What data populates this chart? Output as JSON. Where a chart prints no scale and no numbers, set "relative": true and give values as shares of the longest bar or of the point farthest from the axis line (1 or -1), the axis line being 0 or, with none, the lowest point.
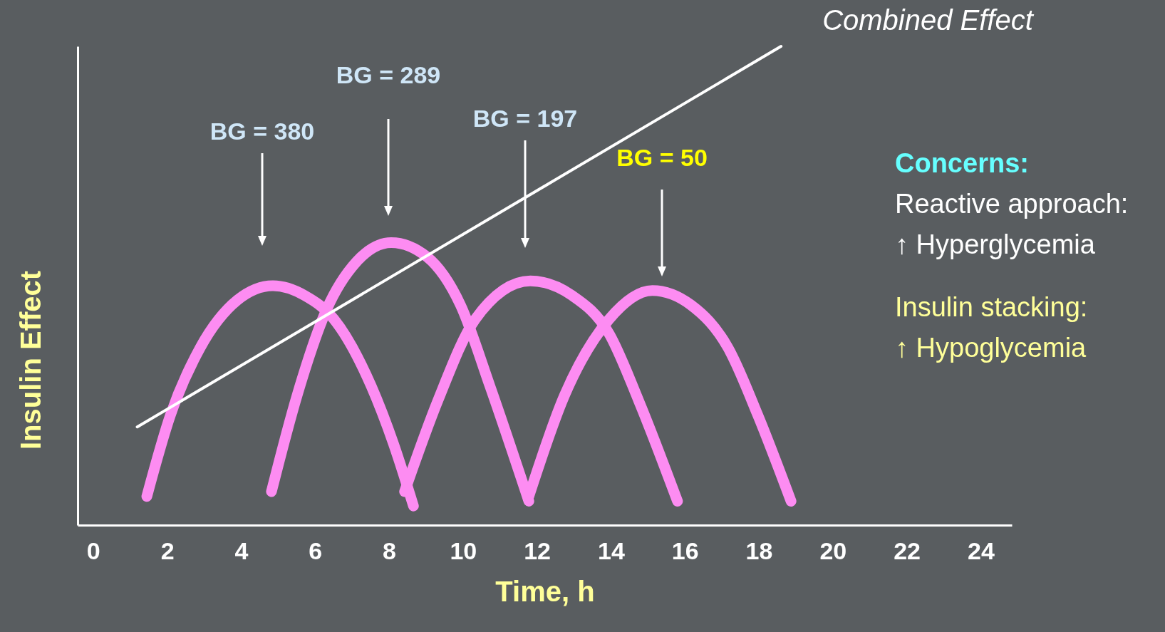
{
  "chart_data": {
    "type": "line",
    "relative": true,
    "xlabel": "Time, h",
    "ylabel": "Insulin Effect",
    "xlim": [
      -0.42,
      24.84
    ],
    "xticks": [
      0,
      2,
      4,
      6,
      8,
      10,
      12,
      14,
      16,
      18,
      20,
      22,
      24
    ],
    "line_style": "solid",
    "series": [
      {
        "color": "#fd8cf2",
        "x": [
          1.45,
          2.09,
          2.89,
          3.9,
          4.86,
          5.71,
          6.51,
          7.52,
          8.12,
          8.66
        ],
        "values": [
          0.06,
          0.23,
          0.37,
          0.47,
          0.5,
          0.48,
          0.43,
          0.29,
          0.17,
          0.04
        ]
      },
      {
        "color": "#fd8cf2",
        "x": [
          4.82,
          5.51,
          6.31,
          7.12,
          8.06,
          9.03,
          9.93,
          10.73,
          11.78
        ],
        "values": [
          0.07,
          0.27,
          0.45,
          0.55,
          0.59,
          0.56,
          0.46,
          0.29,
          0.05
        ]
      },
      {
        "color": "#fd8cf2",
        "x": [
          8.42,
          9.32,
          10.33,
          11.82,
          12.94,
          13.95,
          14.75,
          15.8
        ],
        "values": [
          0.07,
          0.26,
          0.43,
          0.51,
          0.48,
          0.4,
          0.26,
          0.05
        ]
      },
      {
        "color": "#fd8cf2",
        "x": [
          11.78,
          12.74,
          13.95,
          15.12,
          16.16,
          17.17,
          17.97,
          18.87
        ],
        "values": [
          0.06,
          0.27,
          0.43,
          0.49,
          0.46,
          0.37,
          0.23,
          0.05
        ]
      },
      {
        "name": "Combined Effect",
        "color": "#ffffff",
        "x": [
          1.19,
          18.6
        ],
        "values": [
          0.205,
          1.0
        ]
      }
    ],
    "annotations": [
      "BG = 380",
      "BG = 289",
      "BG = 197",
      "BG = 50",
      "Concerns:",
      "Reactive approach:",
      "↑ Hyperglycemia",
      "Insulin stacking:",
      "↑ Hypoglycemia"
    ]
  }
}
